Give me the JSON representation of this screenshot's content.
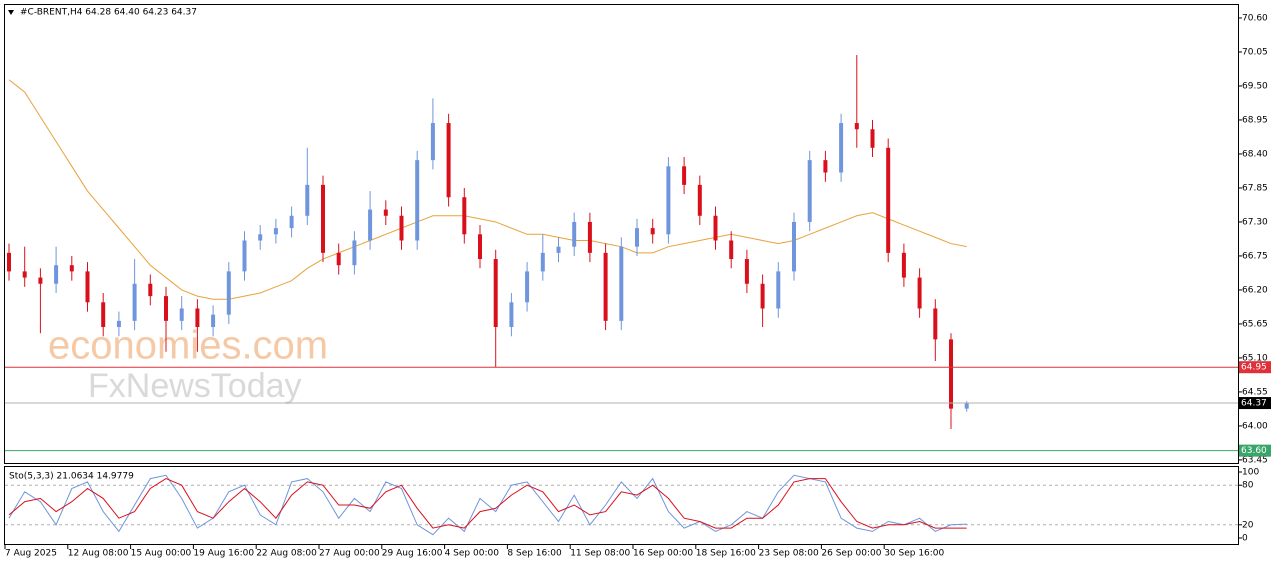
{
  "chart_data": [
    {
      "type": "candlestick",
      "title": "#C-BRENT,H4  64.28 64.40 64.23 64.37",
      "watermarks": [
        "economies.com",
        "FxNewsToday"
      ],
      "categories": [
        "7 Aug 2025",
        null,
        null,
        null,
        "12 Aug 08:00",
        null,
        null,
        null,
        "15 Aug 00:00",
        null,
        null,
        null,
        "19 Aug 16:00",
        null,
        null,
        null,
        "22 Aug 08:00",
        null,
        null,
        null,
        "27 Aug 00:00",
        null,
        null,
        null,
        "29 Aug 16:00",
        null,
        null,
        null,
        "4 Sep 00:00",
        null,
        null,
        null,
        "8 Sep 16:00",
        null,
        null,
        null,
        "11 Sep 08:00",
        null,
        null,
        null,
        "16 Sep 00:00",
        null,
        null,
        null,
        "18 Sep 16:00",
        null,
        null,
        null,
        "23 Sep 08:00",
        null,
        null,
        null,
        "26 Sep 00:00",
        null,
        null,
        null,
        "30 Sep 16:00",
        null,
        null,
        null,
        null,
        null
      ],
      "open": [
        66.8,
        66.5,
        66.4,
        66.3,
        66.6,
        66.5,
        66.0,
        65.6,
        65.7,
        66.3,
        66.1,
        65.7,
        65.9,
        65.6,
        65.8,
        66.5,
        67.0,
        67.1,
        67.2,
        67.4,
        67.9,
        66.8,
        66.6,
        67.0,
        67.5,
        67.4,
        67.0,
        68.3,
        68.9,
        67.7,
        67.1,
        66.7,
        65.6,
        66.0,
        66.5,
        66.8,
        66.9,
        67.3,
        66.8,
        65.7,
        66.9,
        67.2,
        67.1,
        68.2,
        67.9,
        67.4,
        67.0,
        66.7,
        66.3,
        65.9,
        66.5,
        67.3,
        68.3,
        68.1,
        68.9,
        68.8,
        68.5,
        66.8,
        66.4,
        65.9,
        65.4,
        64.28
      ],
      "high": [
        66.95,
        66.9,
        66.55,
        66.9,
        66.75,
        66.65,
        66.15,
        65.85,
        66.7,
        66.45,
        66.25,
        66.1,
        66.05,
        65.95,
        66.65,
        67.15,
        67.25,
        67.35,
        67.55,
        68.5,
        68.05,
        66.95,
        67.15,
        67.8,
        67.65,
        67.55,
        68.45,
        69.3,
        69.05,
        67.85,
        67.25,
        66.85,
        66.15,
        66.65,
        67.1,
        67.05,
        67.45,
        67.45,
        66.95,
        67.05,
        67.35,
        67.35,
        68.35,
        68.35,
        68.05,
        67.55,
        67.15,
        66.85,
        66.45,
        66.65,
        67.45,
        68.45,
        68.45,
        69.05,
        70.0,
        68.95,
        68.65,
        66.95,
        66.55,
        66.05,
        65.5,
        64.4
      ],
      "low": [
        66.35,
        66.25,
        65.5,
        66.15,
        66.35,
        65.85,
        65.45,
        65.45,
        65.55,
        65.95,
        65.2,
        65.55,
        65.2,
        65.45,
        65.65,
        66.35,
        66.85,
        66.95,
        67.05,
        67.25,
        66.65,
        66.45,
        66.45,
        66.85,
        67.25,
        66.85,
        66.85,
        68.15,
        67.55,
        66.95,
        66.55,
        64.95,
        65.45,
        65.85,
        66.35,
        66.65,
        66.75,
        66.65,
        65.55,
        65.55,
        66.75,
        66.95,
        66.95,
        67.75,
        67.25,
        66.85,
        66.55,
        66.15,
        65.6,
        65.75,
        66.35,
        67.15,
        67.95,
        67.95,
        68.5,
        68.35,
        66.65,
        66.25,
        65.75,
        65.05,
        63.95,
        64.23
      ],
      "close": [
        66.5,
        66.4,
        66.3,
        66.6,
        66.5,
        66.0,
        65.6,
        65.7,
        66.3,
        66.1,
        65.7,
        65.9,
        65.6,
        65.8,
        66.5,
        67.0,
        67.1,
        67.2,
        67.4,
        67.9,
        66.8,
        66.6,
        67.0,
        67.5,
        67.4,
        67.0,
        68.3,
        68.9,
        67.7,
        67.1,
        66.7,
        65.6,
        66.0,
        66.5,
        66.8,
        66.9,
        67.3,
        66.8,
        65.7,
        66.9,
        67.2,
        67.1,
        68.2,
        67.9,
        67.4,
        67.0,
        66.7,
        66.3,
        65.9,
        66.5,
        67.3,
        68.3,
        68.1,
        68.9,
        68.8,
        68.5,
        66.8,
        66.4,
        65.9,
        65.4,
        64.28,
        64.37
      ],
      "up_color": "#6f95dc",
      "down_color": "#d9101c",
      "series": [
        {
          "color": "#e8a23a",
          "values": [
            69.6,
            69.4,
            69.0,
            68.6,
            68.2,
            67.8,
            67.5,
            67.2,
            66.9,
            66.6,
            66.4,
            66.2,
            66.1,
            66.05,
            66.05,
            66.1,
            66.15,
            66.25,
            66.35,
            66.55,
            66.7,
            66.8,
            66.9,
            67.0,
            67.1,
            67.2,
            67.3,
            67.4,
            67.4,
            67.4,
            67.35,
            67.3,
            67.2,
            67.1,
            67.1,
            67.05,
            67.0,
            67.0,
            66.95,
            66.9,
            66.8,
            66.8,
            66.9,
            66.95,
            67.0,
            67.05,
            67.1,
            67.05,
            67.0,
            66.95,
            67.0,
            67.1,
            67.2,
            67.3,
            67.4,
            67.45,
            67.35,
            67.25,
            67.15,
            67.05,
            66.95,
            66.9
          ]
        }
      ],
      "levels": [
        {
          "value": 64.95,
          "color": "#e0303a"
        },
        {
          "value": 64.37,
          "color": "#000000"
        },
        {
          "value": 63.6,
          "label": "63.60",
          "color": "#3aa56a"
        }
      ],
      "ylim": [
        63.4,
        70.81
      ],
      "yticks": [
        {
          "value": 70.6,
          "label": "70.60"
        },
        {
          "value": 70.05,
          "label": "70.05"
        },
        {
          "value": 69.5,
          "label": "69.50"
        },
        68.95,
        {
          "value": 68.4,
          "label": "68.40"
        },
        67.85,
        {
          "value": 67.3,
          "label": "67.30"
        },
        66.75,
        {
          "value": 66.2,
          "label": "66.20"
        },
        65.65,
        {
          "value": 65.1,
          "label": "65.10"
        },
        64.55,
        {
          "value": 64.0,
          "label": "64.00"
        },
        63.45
      ]
    },
    {
      "type": "line",
      "title": "Sto(5,3,3) 21.0634 14.9779",
      "series": [
        {
          "color": "#6f95dc",
          "values": [
            30,
            70,
            55,
            20,
            75,
            85,
            40,
            10,
            50,
            90,
            95,
            60,
            15,
            30,
            70,
            80,
            35,
            20,
            85,
            90,
            70,
            30,
            60,
            40,
            85,
            75,
            20,
            5,
            30,
            10,
            60,
            40,
            80,
            85,
            55,
            25,
            65,
            20,
            50,
            85,
            60,
            90,
            40,
            15,
            25,
            10,
            20,
            40,
            30,
            70,
            95,
            90,
            85,
            30,
            15,
            10,
            25,
            20,
            30,
            10,
            20,
            21.06
          ]
        },
        {
          "color": "#d9101c",
          "values": [
            35,
            55,
            60,
            40,
            55,
            75,
            60,
            30,
            40,
            75,
            90,
            80,
            40,
            30,
            55,
            75,
            55,
            30,
            65,
            85,
            80,
            50,
            50,
            45,
            70,
            80,
            45,
            15,
            20,
            15,
            40,
            45,
            65,
            80,
            70,
            40,
            50,
            35,
            40,
            70,
            65,
            80,
            60,
            30,
            25,
            15,
            15,
            30,
            30,
            50,
            85,
            90,
            90,
            55,
            25,
            15,
            20,
            20,
            25,
            15,
            15,
            14.98
          ]
        }
      ],
      "ylim": [
        0,
        100
      ],
      "yticks": [
        0,
        20,
        80,
        100
      ]
    }
  ]
}
